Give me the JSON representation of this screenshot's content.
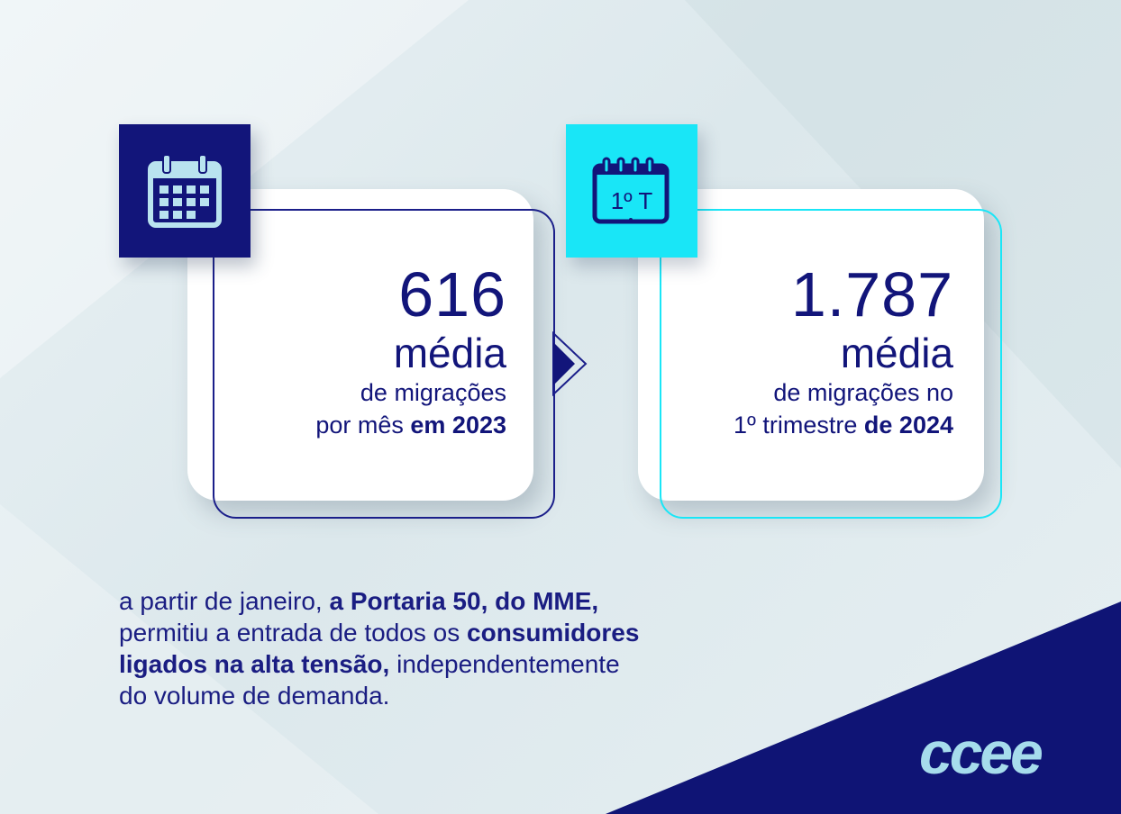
{
  "colors": {
    "navy": "#0f1475",
    "cyan": "#19e6f7",
    "text": "#12157a",
    "logo": "#a6dcec"
  },
  "card_left": {
    "icon": "calendar-grid-icon",
    "number": "616",
    "media": "média",
    "line1": "de migrações",
    "line2_regular": "por mês ",
    "line2_bold": "em 2023"
  },
  "card_right": {
    "icon": "calendar-quarter-icon",
    "icon_text": "1º T",
    "number": "1.787",
    "media": "média",
    "line1": "de migrações no",
    "line2_regular": "1º trimestre ",
    "line2_bold": "de 2024"
  },
  "note": {
    "p1": "a partir de janeiro, ",
    "p2_bold": "a Portaria 50, do MME,",
    "p3": "permitiu a entrada de todos os ",
    "p4_bold": "consumidores",
    "p5_bold": "ligados na alta tensão,",
    "p6": " independentemente",
    "p7": "do volume de demanda."
  },
  "logo": "ccee"
}
